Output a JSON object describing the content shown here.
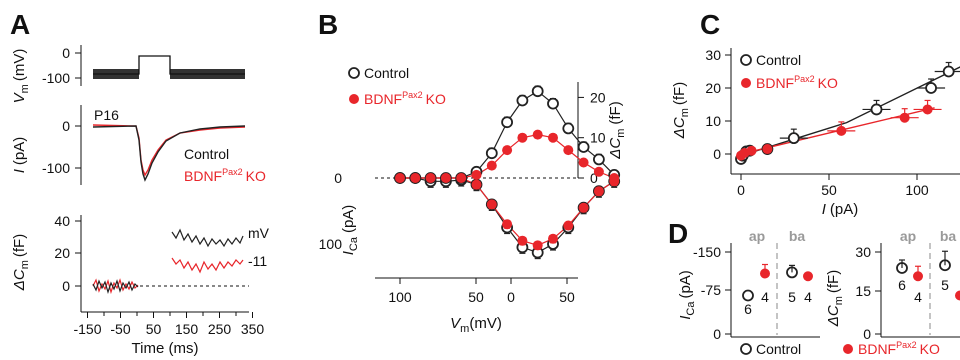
{
  "colors": {
    "control": "#222222",
    "ko": "#e8262b",
    "dashed": "#888888"
  },
  "panel_labels": {
    "a": "A",
    "b": "B",
    "c": "C",
    "d": "D"
  },
  "legend": {
    "control": "Control",
    "ko_prefix": "BDNF",
    "ko_sup": "Pax2",
    "ko_suffix": "KO"
  },
  "panel_a": {
    "vm_label": "V",
    "vm_sub": "m",
    "vm_unit": "(mV)",
    "i_label": "I",
    "i_unit": "(pA)",
    "dcm_prefix": "ΔC",
    "dcm_sub": "m",
    "dcm_unit": "(fF)",
    "age_label": "P16",
    "trace_label_mv": "mV",
    "trace_label_val": "-11",
    "x_title": "Time (ms)",
    "x_ticks": [
      "-150",
      "-100",
      "-50",
      "0",
      "50",
      "100",
      "150",
      "200",
      "250",
      "300",
      "350"
    ],
    "vm_ticks": [
      "0",
      "-100"
    ],
    "i_ticks": [
      "0",
      "-100"
    ],
    "dcm_ticks": [
      "40",
      "20",
      "0"
    ]
  },
  "panel_b": {
    "x_title": "V",
    "x_sub": "m",
    "x_unit": "(mV)",
    "ica_label": "I",
    "ica_sub": "Ca",
    "ica_unit": "(pA)",
    "dcm_prefix": "ΔC",
    "dcm_sub": "m",
    "dcm_unit": "(fF)",
    "x_ticks": [
      "100",
      "50",
      "0",
      "50"
    ],
    "left_ticks": [
      "0",
      "100"
    ],
    "right_ticks": [
      "20",
      "10",
      "0"
    ]
  },
  "panel_c": {
    "x_title": "I",
    "x_unit": "(pA)",
    "y_prefix": "ΔC",
    "y_sub": "m",
    "y_unit": "(fF)",
    "x_ticks": [
      "0",
      "50",
      "100"
    ],
    "y_ticks": [
      "30",
      "20",
      "10",
      "0"
    ]
  },
  "panel_d": {
    "ica_label": "I",
    "ica_sub": "Ca",
    "ica_unit": "(pA)",
    "dcm_prefix": "ΔC",
    "dcm_sub": "m",
    "dcm_unit": "(fF)",
    "group_ap": "ap",
    "group_ba": "ba",
    "left_ticks": [
      "-150",
      "-75",
      "0"
    ],
    "right_ticks": [
      "30",
      "15",
      "0"
    ],
    "n_left": [
      "6",
      "4",
      "5",
      "4"
    ],
    "n_right": [
      "6",
      "4",
      "5"
    ]
  },
  "chart_data": [
    {
      "panel": "A",
      "type": "line",
      "series": [
        {
          "name": "Control",
          "kind": "command voltage",
          "x": [
            -150,
            0,
            0,
            100,
            100,
            350
          ],
          "y": [
            -80,
            -80,
            -11,
            -11,
            -80,
            -80
          ]
        },
        {
          "name": "Control",
          "kind": "I (pA)",
          "x": [
            -150,
            -5,
            0,
            10,
            40,
            70,
            90,
            100,
            110,
            150,
            200,
            250,
            300,
            350
          ],
          "y": [
            0,
            0,
            -20,
            -60,
            -95,
            -115,
            -125,
            -130,
            -55,
            -20,
            -10,
            -6,
            -4,
            -3
          ]
        },
        {
          "name": "BDNF Pax2 KO",
          "kind": "I (pA)",
          "x": [
            -150,
            -5,
            0,
            10,
            40,
            70,
            90,
            100,
            110,
            150,
            200,
            250,
            300,
            350
          ],
          "y": [
            0,
            0,
            -15,
            -50,
            -85,
            -105,
            -115,
            -120,
            -50,
            -18,
            -8,
            -5,
            -3,
            -2
          ]
        },
        {
          "name": "Control",
          "kind": "ΔCm (fF)",
          "x": [
            -150,
            0,
            110,
            200,
            350
          ],
          "y": [
            0,
            0,
            28,
            25,
            25
          ]
        },
        {
          "name": "BDNF Pax2 KO",
          "kind": "ΔCm (fF)",
          "x": [
            -150,
            0,
            110,
            200,
            350
          ],
          "y": [
            0,
            0,
            15,
            13,
            13
          ]
        }
      ],
      "xlabel": "Time (ms)"
    },
    {
      "panel": "B",
      "type": "scatter",
      "x": [
        90,
        80,
        70,
        60,
        50,
        40,
        30,
        20,
        10,
        0,
        -10,
        -20,
        -30,
        -40,
        -50
      ],
      "series": [
        {
          "name": "Control",
          "axis": "ICa (pA)",
          "values": [
            0,
            0,
            5,
            5,
            3,
            10,
            40,
            75,
            105,
            113,
            100,
            75,
            45,
            20,
            5
          ]
        },
        {
          "name": "BDNF Pax2 KO",
          "axis": "ICa (pA)",
          "values": [
            0,
            0,
            0,
            0,
            0,
            10,
            40,
            70,
            95,
            102,
            92,
            72,
            45,
            20,
            5
          ]
        },
        {
          "name": "Control",
          "axis": "ΔCm (fF)",
          "values": [
            0,
            0,
            0,
            0,
            0,
            2,
            8,
            18,
            25,
            28,
            24,
            16,
            10,
            6,
            1
          ]
        },
        {
          "name": "BDNF Pax2 KO",
          "axis": "ΔCm (fF)",
          "values": [
            0,
            0,
            0,
            0,
            0,
            1,
            4,
            9,
            13,
            14,
            13,
            9,
            5,
            2,
            0
          ]
        }
      ],
      "xlabel": "Vm (mV)",
      "ylabel": "ICa (pA)",
      "y2label": "ΔCm (fF)",
      "xlim": [
        100,
        -60
      ],
      "ylim": [
        130,
        -40
      ],
      "y2lim": [
        -10,
        30
      ]
    },
    {
      "panel": "C",
      "type": "scatter",
      "series": [
        {
          "name": "Control",
          "x": [
            0,
            1,
            3,
            5,
            15,
            30,
            77,
            108,
            118
          ],
          "y": [
            -1.5,
            -0.5,
            0.8,
            1,
            1.5,
            4.8,
            13.5,
            20,
            25
          ]
        },
        {
          "name": "BDNF Pax2 KO",
          "x": [
            0,
            2,
            6,
            15,
            57,
            93,
            106
          ],
          "y": [
            -0.5,
            0.3,
            1,
            1.5,
            7,
            11,
            13.5
          ]
        }
      ],
      "xlabel": "I (pA)",
      "ylabel": "ΔCm (fF)",
      "xlim": [
        -5,
        125
      ],
      "ylim": [
        -3,
        32
      ]
    },
    {
      "panel": "D",
      "type": "scatter",
      "categories": [
        "ap",
        "ba"
      ],
      "series": [
        {
          "name": "Control",
          "axis": "ICa (pA)",
          "values": [
            -70,
            -112
          ]
        },
        {
          "name": "BDNF Pax2 KO",
          "axis": "ICa (pA)",
          "values": [
            -110,
            -105
          ]
        },
        {
          "name": "Control",
          "axis": "ΔCm (fF)",
          "values": [
            24,
            25
          ]
        },
        {
          "name": "BDNF Pax2 KO",
          "axis": "ΔCm (fF)",
          "values": [
            21,
            14
          ]
        }
      ],
      "ylabel": "ICa (pA)",
      "y2label": "ΔCm (fF)"
    }
  ]
}
